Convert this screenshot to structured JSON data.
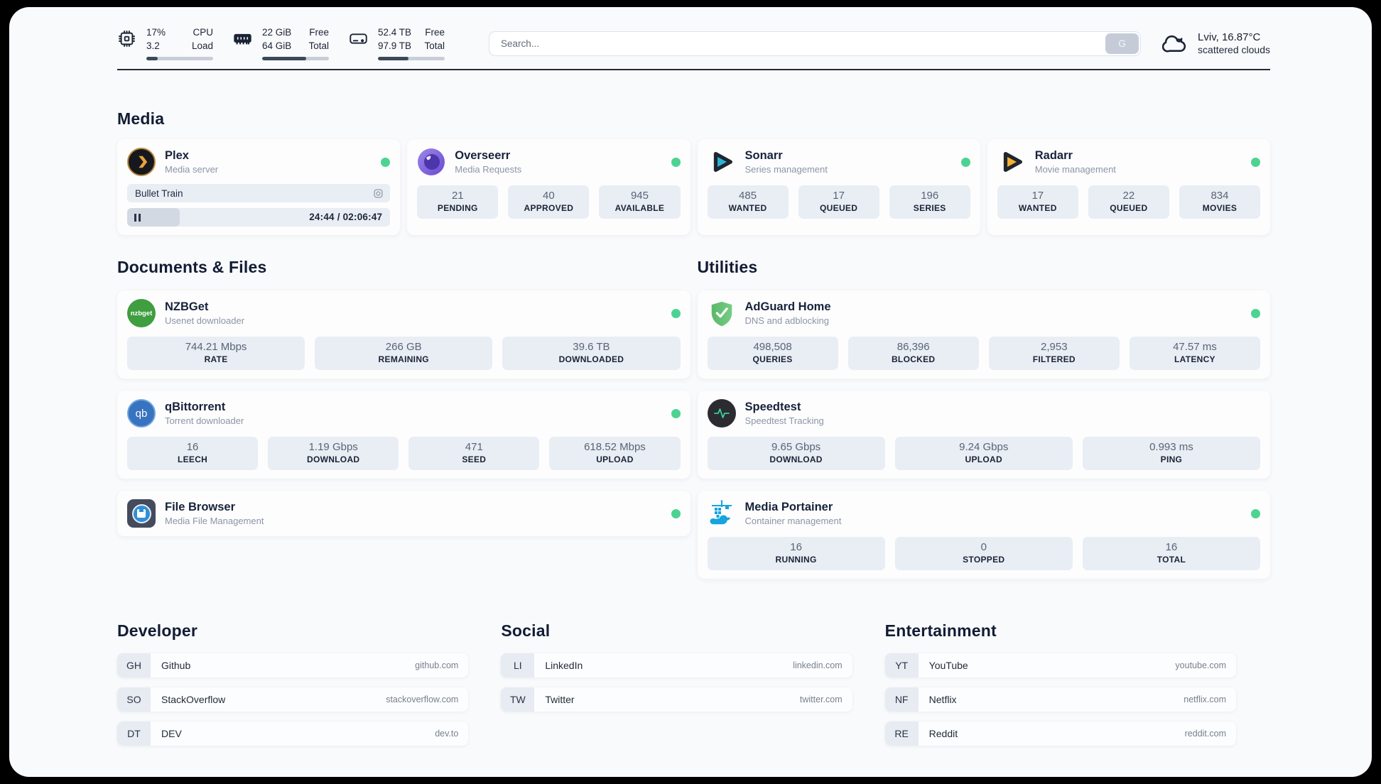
{
  "colors": {
    "status_online": "#4cd392"
  },
  "topbar": {
    "cpu": {
      "line1": "17%",
      "line2": "3.2",
      "label1": "CPU",
      "label2": "Load",
      "percent": 17
    },
    "memory": {
      "line1": "22 GiB",
      "line2": "64 GiB",
      "label1": "Free",
      "label2": "Total",
      "percent": 66
    },
    "disk": {
      "line1": "52.4 TB",
      "line2": "97.9 TB",
      "label1": "Free",
      "label2": "Total",
      "percent": 46
    },
    "search": {
      "placeholder": "Search...",
      "button_label": "G"
    },
    "weather": {
      "location": "Lviv, 16.87°C",
      "condition": "scattered clouds"
    }
  },
  "sections": {
    "media": {
      "title": "Media",
      "plex": {
        "title": "Plex",
        "subtitle": "Media server",
        "now_playing": "Bullet Train",
        "progress_time": "24:44 / 02:06:47",
        "progress_percent": 20
      },
      "overseerr": {
        "title": "Overseerr",
        "subtitle": "Media Requests",
        "stats": [
          {
            "value": "21",
            "label": "PENDING"
          },
          {
            "value": "40",
            "label": "APPROVED"
          },
          {
            "value": "945",
            "label": "AVAILABLE"
          }
        ]
      },
      "sonarr": {
        "title": "Sonarr",
        "subtitle": "Series management",
        "stats": [
          {
            "value": "485",
            "label": "WANTED"
          },
          {
            "value": "17",
            "label": "QUEUED"
          },
          {
            "value": "196",
            "label": "SERIES"
          }
        ]
      },
      "radarr": {
        "title": "Radarr",
        "subtitle": "Movie management",
        "stats": [
          {
            "value": "17",
            "label": "WANTED"
          },
          {
            "value": "22",
            "label": "QUEUED"
          },
          {
            "value": "834",
            "label": "MOVIES"
          }
        ]
      }
    },
    "documents": {
      "title": "Documents & Files",
      "nzbget": {
        "title": "NZBGet",
        "subtitle": "Usenet downloader",
        "stats": [
          {
            "value": "744.21 Mbps",
            "label": "RATE"
          },
          {
            "value": "266 GB",
            "label": "REMAINING"
          },
          {
            "value": "39.6 TB",
            "label": "DOWNLOADED"
          }
        ]
      },
      "qbittorrent": {
        "title": "qBittorrent",
        "subtitle": "Torrent downloader",
        "stats": [
          {
            "value": "16",
            "label": "LEECH"
          },
          {
            "value": "1.19 Gbps",
            "label": "DOWNLOAD"
          },
          {
            "value": "471",
            "label": "SEED"
          },
          {
            "value": "618.52 Mbps",
            "label": "UPLOAD"
          }
        ]
      },
      "filebrowser": {
        "title": "File Browser",
        "subtitle": "Media File Management"
      }
    },
    "utilities": {
      "title": "Utilities",
      "adguard": {
        "title": "AdGuard Home",
        "subtitle": "DNS and adblocking",
        "stats": [
          {
            "value": "498,508",
            "label": "QUERIES"
          },
          {
            "value": "86,396",
            "label": "BLOCKED"
          },
          {
            "value": "2,953",
            "label": "FILTERED"
          },
          {
            "value": "47.57 ms",
            "label": "LATENCY"
          }
        ]
      },
      "speedtest": {
        "title": "Speedtest",
        "subtitle": "Speedtest Tracking",
        "stats": [
          {
            "value": "9.65 Gbps",
            "label": "DOWNLOAD"
          },
          {
            "value": "9.24 Gbps",
            "label": "UPLOAD"
          },
          {
            "value": "0.993 ms",
            "label": "PING"
          }
        ]
      },
      "portainer": {
        "title": "Media Portainer",
        "subtitle": "Container management",
        "stats": [
          {
            "value": "16",
            "label": "RUNNING"
          },
          {
            "value": "0",
            "label": "STOPPED"
          },
          {
            "value": "16",
            "label": "TOTAL"
          }
        ]
      }
    },
    "links": {
      "developer": {
        "title": "Developer",
        "items": [
          {
            "abbr": "GH",
            "name": "Github",
            "url": "github.com"
          },
          {
            "abbr": "SO",
            "name": "StackOverflow",
            "url": "stackoverflow.com"
          },
          {
            "abbr": "DT",
            "name": "DEV",
            "url": "dev.to"
          }
        ]
      },
      "social": {
        "title": "Social",
        "items": [
          {
            "abbr": "LI",
            "name": "LinkedIn",
            "url": "linkedin.com"
          },
          {
            "abbr": "TW",
            "name": "Twitter",
            "url": "twitter.com"
          }
        ]
      },
      "entertainment": {
        "title": "Entertainment",
        "items": [
          {
            "abbr": "YT",
            "name": "YouTube",
            "url": "youtube.com"
          },
          {
            "abbr": "NF",
            "name": "Netflix",
            "url": "netflix.com"
          },
          {
            "abbr": "RE",
            "name": "Reddit",
            "url": "reddit.com"
          }
        ]
      }
    }
  },
  "icons": {
    "nzbget_label": "nzbget",
    "qbittorrent_label": "qb"
  }
}
